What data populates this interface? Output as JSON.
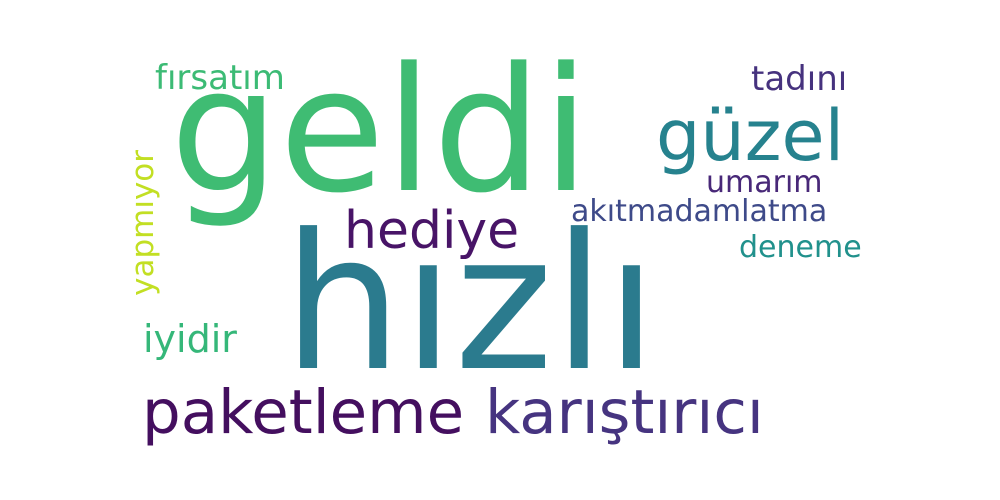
{
  "words": [
    {
      "text": "hızlı",
      "color": "#2b7b8e"
    },
    {
      "text": "geldi",
      "color": "#3fbc73"
    },
    {
      "text": "paketleme",
      "color": "#440f5f"
    },
    {
      "text": "karıştırıcı",
      "color": "#463480"
    },
    {
      "text": "güzel",
      "color": "#26828e"
    },
    {
      "text": "hediye",
      "color": "#481467"
    },
    {
      "text": "fırsatım",
      "color": "#3cbb75"
    },
    {
      "text": "tadını",
      "color": "#46327e"
    },
    {
      "text": "umarım",
      "color": "#482878"
    },
    {
      "text": "akıtmadamlatma",
      "color": "#3e4a89"
    },
    {
      "text": "deneme",
      "color": "#21918c"
    },
    {
      "text": "yapmıyor",
      "color": "#c2df23"
    },
    {
      "text": "iyidir",
      "color": "#35b779"
    }
  ]
}
